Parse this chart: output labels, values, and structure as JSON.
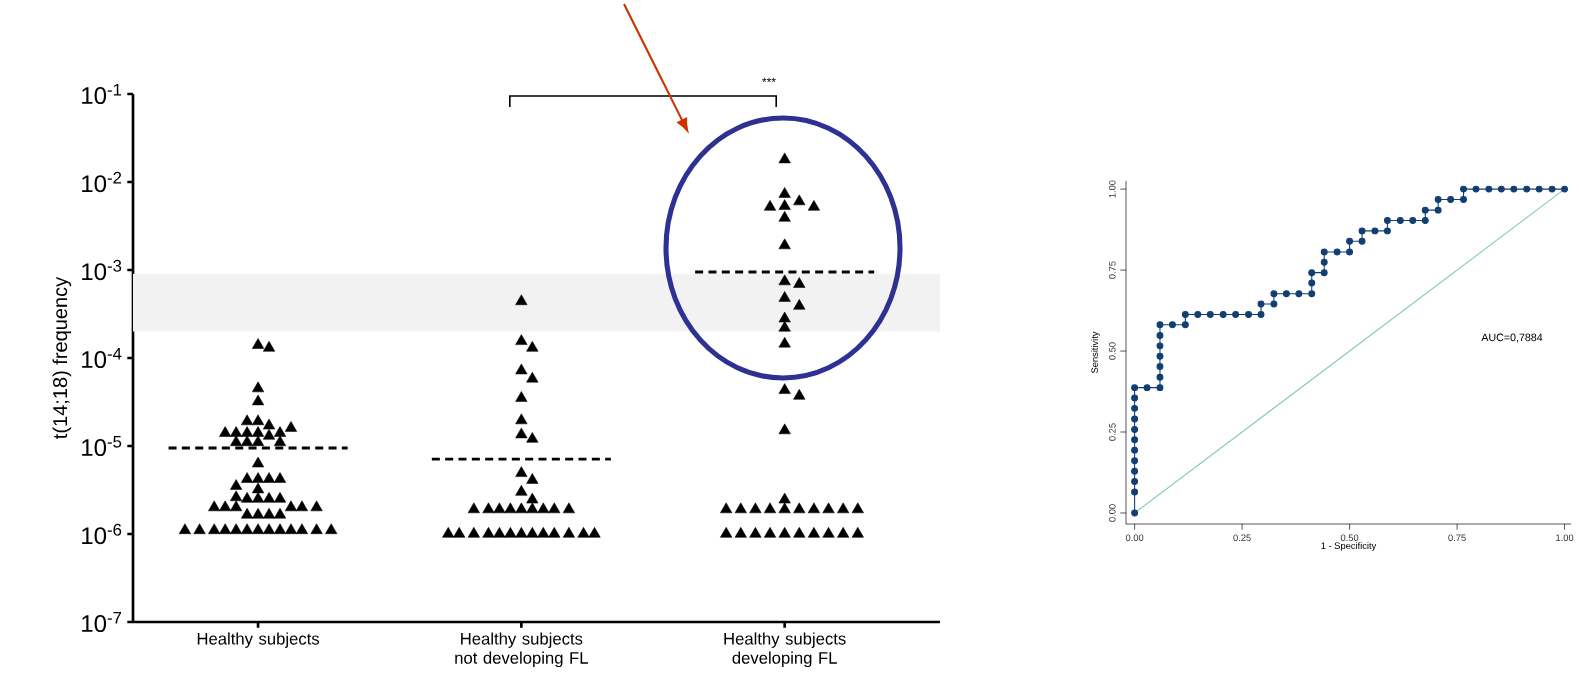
{
  "chart_data": [
    {
      "type": "scatter",
      "ylabel": "t(14;18) frequency",
      "categories": [
        "Healthy subjects",
        "Healthy subjects not developing FL",
        "Healthy subjects developing FL"
      ],
      "log": "y",
      "ylim": [
        1e-07,
        0.1
      ],
      "yticks": [
        {
          "value": 1e-07,
          "label": "10$^{-7}$"
        },
        {
          "value": 1e-06,
          "label": "10$^{-6}$"
        },
        {
          "value": 1e-05,
          "label": "10$^{-5}$"
        },
        {
          "value": 0.0001,
          "label": "10$^{-4}$"
        },
        {
          "value": 0.001,
          "label": "10$^{-3}$"
        },
        {
          "value": 0.01,
          "label": "10$^{-2}$"
        },
        {
          "value": 0.1,
          "label": "10$^{-1}$"
        }
      ],
      "marker": "triangle",
      "bands": [
        {
          "axis": "y",
          "from": 0.0002,
          "to": 0.0009,
          "color": "#f2f2f2"
        }
      ],
      "annotations": [
        "***"
      ],
      "series": [
        {
          "color": "#000000",
          "x": [
            "Healthy subjects",
            "Healthy subjects",
            "Healthy subjects",
            "Healthy subjects",
            "Healthy subjects",
            "Healthy subjects",
            "Healthy subjects",
            "Healthy subjects",
            "Healthy subjects",
            "Healthy subjects",
            "Healthy subjects",
            "Healthy subjects",
            "Healthy subjects",
            "Healthy subjects",
            "Healthy subjects",
            "Healthy subjects",
            "Healthy subjects",
            "Healthy subjects",
            "Healthy subjects",
            "Healthy subjects",
            "Healthy subjects",
            "Healthy subjects",
            "Healthy subjects",
            "Healthy subjects",
            "Healthy subjects",
            "Healthy subjects",
            "Healthy subjects",
            "Healthy subjects",
            "Healthy subjects",
            "Healthy subjects",
            "Healthy subjects",
            "Healthy subjects",
            "Healthy subjects",
            "Healthy subjects",
            "Healthy subjects",
            "Healthy subjects",
            "Healthy subjects",
            "Healthy subjects",
            "Healthy subjects",
            "Healthy subjects",
            "Healthy subjects",
            "Healthy subjects",
            "Healthy subjects",
            "Healthy subjects",
            "Healthy subjects",
            "Healthy subjects",
            "Healthy subjects",
            "Healthy subjects",
            "Healthy subjects",
            "Healthy subjects",
            "Healthy subjects",
            "Healthy subjects",
            "Healthy subjects"
          ],
          "values": [
            0.00014,
            0.00013,
            4.5e-05,
            3.2e-05,
            1.9e-05,
            1.7e-05,
            1.4e-05,
            1.4e-05,
            1.4e-05,
            1.4e-05,
            1.6e-05,
            1.9e-05,
            1.3e-05,
            1.4e-05,
            1.1e-05,
            1.1e-05,
            1.1e-05,
            1.1e-05,
            6.3e-06,
            4.2e-06,
            4.2e-06,
            4.2e-06,
            4.2e-06,
            3.5e-06,
            3.2e-06,
            2.5e-06,
            2.5e-06,
            2.5e-06,
            2.5e-06,
            2.6e-06,
            2e-06,
            2e-06,
            2e-06,
            2e-06,
            2e-06,
            2e-06,
            1.65e-06,
            1.65e-06,
            1.65e-06,
            1.65e-06,
            1.1e-06,
            1.1e-06,
            1.1e-06,
            1.1e-06,
            1.1e-06,
            1.1e-06,
            1.1e-06,
            1.1e-06,
            1.1e-06,
            1.1e-06,
            1.1e-06,
            1.1e-06,
            1.1e-06
          ]
        },
        {
          "color": "#000000",
          "x": [
            "Healthy subjects not developing FL",
            "Healthy subjects not developing FL",
            "Healthy subjects not developing FL",
            "Healthy subjects not developing FL",
            "Healthy subjects not developing FL",
            "Healthy subjects not developing FL",
            "Healthy subjects not developing FL",
            "Healthy subjects not developing FL",
            "Healthy subjects not developing FL",
            "Healthy subjects not developing FL",
            "Healthy subjects not developing FL",
            "Healthy subjects not developing FL",
            "Healthy subjects not developing FL",
            "Healthy subjects not developing FL",
            "Healthy subjects not developing FL",
            "Healthy subjects not developing FL",
            "Healthy subjects not developing FL",
            "Healthy subjects not developing FL",
            "Healthy subjects not developing FL",
            "Healthy subjects not developing FL",
            "Healthy subjects not developing FL",
            "Healthy subjects not developing FL",
            "Healthy subjects not developing FL",
            "Healthy subjects not developing FL",
            "Healthy subjects not developing FL",
            "Healthy subjects not developing FL",
            "Healthy subjects not developing FL",
            "Healthy subjects not developing FL",
            "Healthy subjects not developing FL",
            "Healthy subjects not developing FL",
            "Healthy subjects not developing FL",
            "Healthy subjects not developing FL",
            "Healthy subjects not developing FL",
            "Healthy subjects not developing FL",
            "Healthy subjects not developing FL"
          ],
          "values": [
            0.00044,
            0.000155,
            0.00013,
            7.2e-05,
            5.8e-05,
            3.5e-05,
            1.95e-05,
            1.35e-05,
            1.2e-05,
            4.9e-06,
            4.1e-06,
            3e-06,
            2.45e-06,
            1.9e-06,
            1.9e-06,
            1.9e-06,
            1.9e-06,
            1.9e-06,
            1.9e-06,
            1.9e-06,
            1.9e-06,
            1.9e-06,
            1e-06,
            1e-06,
            1e-06,
            1e-06,
            1e-06,
            1e-06,
            1e-06,
            1e-06,
            1e-06,
            1e-06,
            1e-06,
            1e-06,
            1e-06
          ]
        },
        {
          "color": "#000000",
          "x": [
            "Healthy subjects developing FL",
            "Healthy subjects developing FL",
            "Healthy subjects developing FL",
            "Healthy subjects developing FL",
            "Healthy subjects developing FL",
            "Healthy subjects developing FL",
            "Healthy subjects developing FL",
            "Healthy subjects developing FL",
            "Healthy subjects developing FL",
            "Healthy subjects developing FL",
            "Healthy subjects developing FL",
            "Healthy subjects developing FL",
            "Healthy subjects developing FL",
            "Healthy subjects developing FL",
            "Healthy subjects developing FL",
            "Healthy subjects developing FL",
            "Healthy subjects developing FL",
            "Healthy subjects developing FL",
            "Healthy subjects developing FL",
            "Healthy subjects developing FL",
            "Healthy subjects developing FL",
            "Healthy subjects developing FL",
            "Healthy subjects developing FL",
            "Healthy subjects developing FL",
            "Healthy subjects developing FL",
            "Healthy subjects developing FL",
            "Healthy subjects developing FL",
            "Healthy subjects developing FL",
            "Healthy subjects developing FL",
            "Healthy subjects developing FL",
            "Healthy subjects developing FL",
            "Healthy subjects developing FL",
            "Healthy subjects developing FL",
            "Healthy subjects developing FL",
            "Healthy subjects developing FL",
            "Healthy subjects developing FL",
            "Healthy subjects developing FL",
            "Healthy subjects developing FL",
            "Healthy subjects developing FL"
          ],
          "values": [
            0.018,
            0.0073,
            0.006,
            0.0053,
            0.0052,
            0.0052,
            0.0039,
            0.0019,
            0.00074,
            0.00069,
            0.00048,
            0.00039,
            0.00028,
            0.00022,
            0.000145,
            4.3e-05,
            3.7e-05,
            1.5e-05,
            2.45e-06,
            1.9e-06,
            1.9e-06,
            1.9e-06,
            1.9e-06,
            1.9e-06,
            1.9e-06,
            1.9e-06,
            1.9e-06,
            1.9e-06,
            1.9e-06,
            1e-06,
            1e-06,
            1e-06,
            1e-06,
            1e-06,
            1e-06,
            1e-06,
            1e-06,
            1e-06,
            1e-06
          ]
        }
      ],
      "ref_lines": [
        {
          "axis": "y",
          "value": 9.5e-06,
          "color": "#000000",
          "line_style": "dashed"
        },
        {
          "axis": "y",
          "value": 7.1e-06,
          "color": "#000000",
          "line_style": "dashed"
        },
        {
          "axis": "y",
          "value": 0.00095,
          "color": "#000000",
          "line_style": "dashed"
        }
      ]
    },
    {
      "type": "line",
      "xlabel": "1 - Specificity",
      "ylabel": "Sensitivity",
      "xlim": [
        -0.02,
        1.015
      ],
      "ylim": [
        -0.034,
        1.025
      ],
      "xticks": [
        {
          "value": 0,
          "label": "0.00"
        },
        {
          "value": 0.25,
          "label": "0.25"
        },
        {
          "value": 0.5,
          "label": "0.50"
        },
        {
          "value": 0.75,
          "label": "0.75"
        },
        {
          "value": 1,
          "label": "1.00"
        }
      ],
      "yticks": [
        {
          "value": 0,
          "label": "0.00"
        },
        {
          "value": 0.25,
          "label": "0.25"
        },
        {
          "value": 0.5,
          "label": "0.50"
        },
        {
          "value": 0.75,
          "label": "0.75"
        },
        {
          "value": 1,
          "label": "1.00"
        }
      ],
      "marker": "circle",
      "annotations": [
        "AUC=0,7884"
      ],
      "series": [
        {
          "color": "#7fc9b5",
          "marker": "none",
          "x": [
            0,
            1
          ],
          "values": [
            0,
            1
          ]
        },
        {
          "color": "#123e72",
          "x": [
            0,
            0,
            0,
            0,
            0,
            0,
            0,
            0,
            0,
            0,
            0,
            0,
            0.029,
            0.059,
            0.059,
            0.059,
            0.059,
            0.059,
            0.059,
            0.059,
            0.088,
            0.118,
            0.118,
            0.147,
            0.176,
            0.206,
            0.235,
            0.265,
            0.294,
            0.294,
            0.324,
            0.324,
            0.353,
            0.382,
            0.412,
            0.412,
            0.412,
            0.441,
            0.441,
            0.441,
            0.471,
            0.5,
            0.5,
            0.529,
            0.529,
            0.559,
            0.588,
            0.588,
            0.618,
            0.647,
            0.676,
            0.676,
            0.706,
            0.706,
            0.735,
            0.765,
            0.765,
            0.794,
            0.824,
            0.853,
            0.882,
            0.912,
            0.941,
            0.971,
            1
          ],
          "values": [
            0,
            0.065,
            0.097,
            0.129,
            0.161,
            0.194,
            0.226,
            0.258,
            0.29,
            0.323,
            0.355,
            0.387,
            0.387,
            0.387,
            0.419,
            0.452,
            0.484,
            0.516,
            0.548,
            0.581,
            0.581,
            0.581,
            0.613,
            0.613,
            0.613,
            0.613,
            0.613,
            0.613,
            0.613,
            0.645,
            0.645,
            0.677,
            0.677,
            0.677,
            0.677,
            0.71,
            0.742,
            0.742,
            0.774,
            0.806,
            0.806,
            0.806,
            0.839,
            0.839,
            0.871,
            0.871,
            0.871,
            0.903,
            0.903,
            0.903,
            0.903,
            0.935,
            0.935,
            0.968,
            0.968,
            0.968,
            1,
            1,
            1,
            1,
            1,
            1,
            1,
            1,
            1
          ]
        }
      ]
    }
  ]
}
